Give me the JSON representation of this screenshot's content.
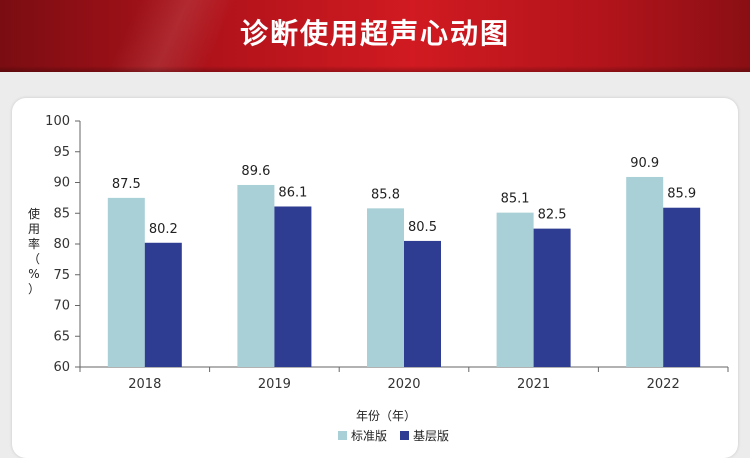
{
  "header": {
    "title": "诊断使用超声心动图"
  },
  "colors": {
    "series1": "#a9d0d6",
    "series2": "#2e3d91"
  },
  "chart_data": {
    "type": "bar",
    "title": "",
    "categories": [
      "2018",
      "2019",
      "2020",
      "2021",
      "2022"
    ],
    "series": [
      {
        "name": "标准版",
        "values": [
          87.5,
          89.6,
          85.8,
          85.1,
          90.9
        ]
      },
      {
        "name": "基层版",
        "values": [
          80.2,
          86.1,
          80.5,
          82.5,
          85.9
        ]
      }
    ],
    "xlabel": "年份（年）",
    "ylabel": "使用率（%）",
    "ylim": [
      60,
      100
    ],
    "yticks": [
      60,
      65,
      70,
      75,
      80,
      85,
      90,
      95,
      100
    ],
    "grid": false,
    "legend": "bottom"
  }
}
